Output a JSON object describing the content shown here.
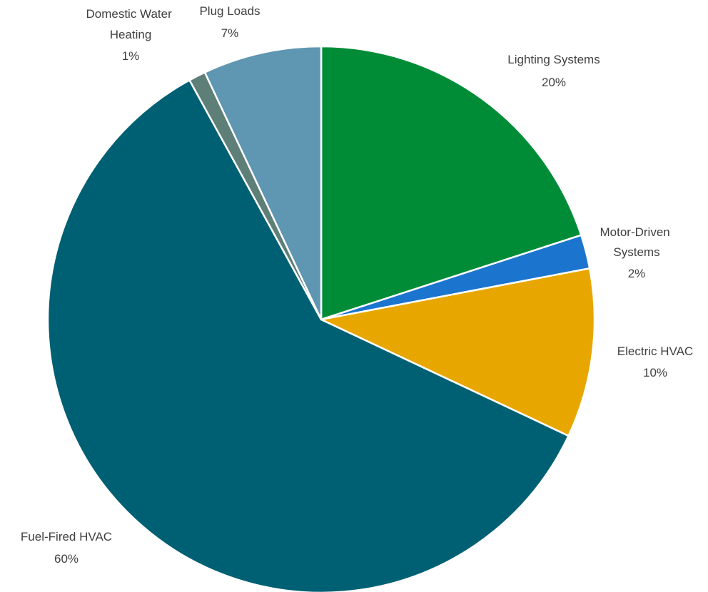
{
  "chart_data": {
    "type": "pie",
    "start_angle_deg": 0,
    "direction": "clockwise",
    "slices": [
      {
        "label": "Lighting Systems",
        "value": 20,
        "pct_label": "20%",
        "color": "#008C37"
      },
      {
        "label": "Motor-Driven Systems",
        "value": 2,
        "pct_label": "2%",
        "color": "#1B75CF"
      },
      {
        "label": "Electric HVAC",
        "value": 10,
        "pct_label": "10%",
        "color": "#E7A700"
      },
      {
        "label": "Fuel-Fired HVAC",
        "value": 60,
        "pct_label": "60%",
        "color": "#006073"
      },
      {
        "label": "Domestic Water Heating",
        "value": 1,
        "pct_label": "1%",
        "color": "#5E7F78"
      },
      {
        "label": "Plug Loads",
        "value": 7,
        "pct_label": "7%",
        "color": "#5F96B1"
      }
    ]
  }
}
